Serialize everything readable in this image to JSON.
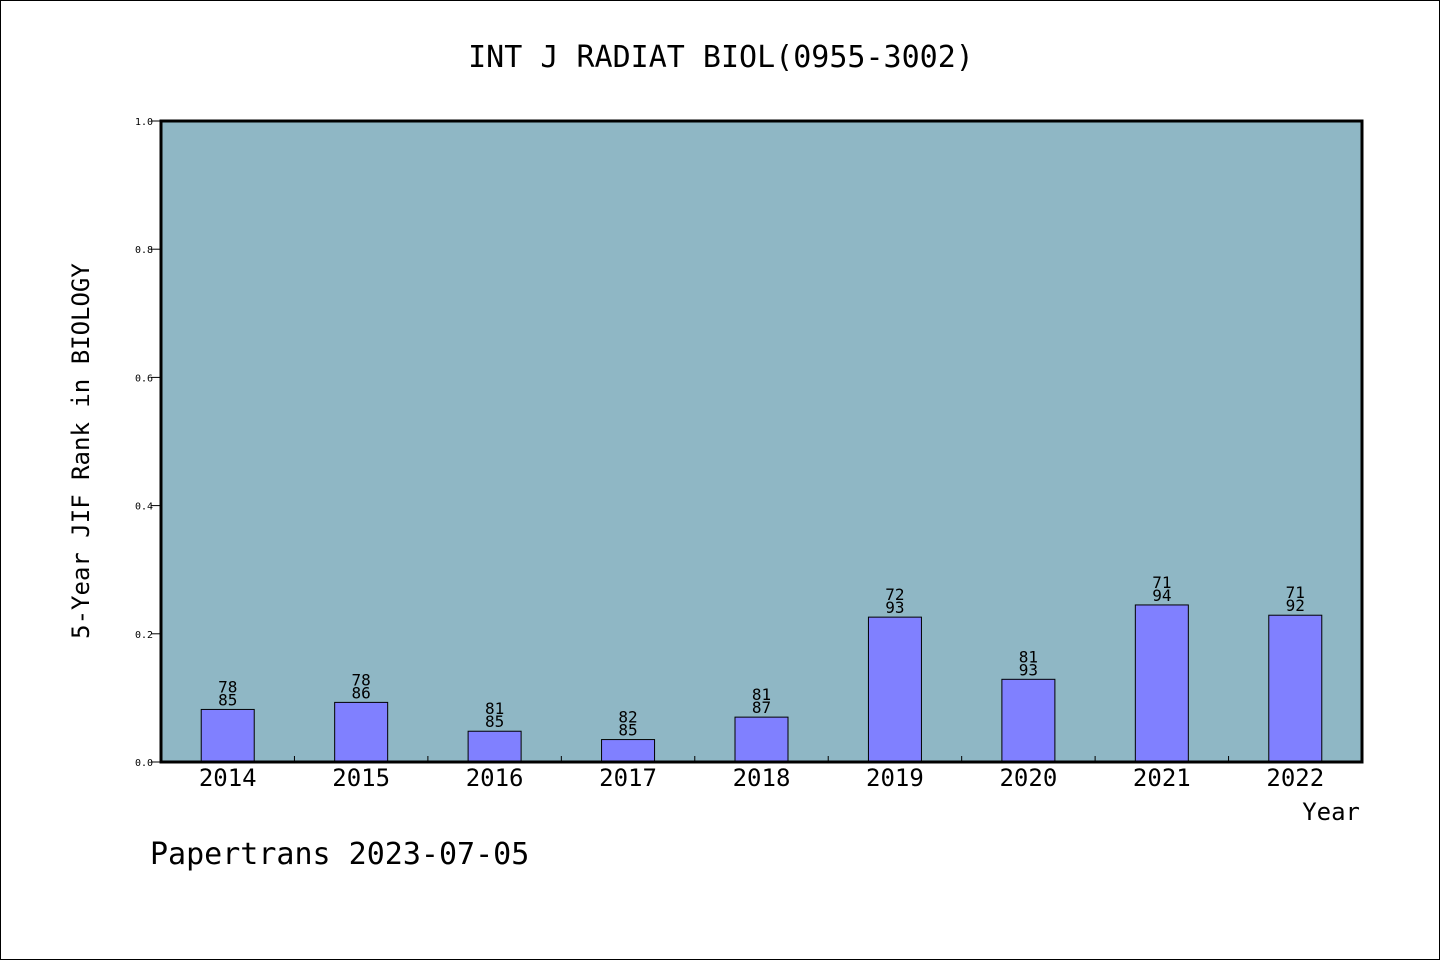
{
  "chart_data": {
    "type": "bar",
    "title": "INT J RADIAT BIOL(0955-3002)",
    "xlabel": "Year",
    "ylabel": "5-Year JIF Rank in BIOLOGY",
    "ylim": [
      0,
      1.0
    ],
    "yticks": [
      "0.0",
      "0.2",
      "0.4",
      "0.6",
      "0.8",
      "1.0"
    ],
    "categories": [
      "2014",
      "2015",
      "2016",
      "2017",
      "2018",
      "2019",
      "2020",
      "2021",
      "2022"
    ],
    "values": [
      0.082,
      0.093,
      0.048,
      0.035,
      0.07,
      0.226,
      0.129,
      0.245,
      0.229
    ],
    "rank_labels": [
      {
        "rank": "78",
        "total": "85"
      },
      {
        "rank": "78",
        "total": "86"
      },
      {
        "rank": "81",
        "total": "85"
      },
      {
        "rank": "82",
        "total": "85"
      },
      {
        "rank": "81",
        "total": "87"
      },
      {
        "rank": "72",
        "total": "93"
      },
      {
        "rank": "81",
        "total": "93"
      },
      {
        "rank": "71",
        "total": "94"
      },
      {
        "rank": "71",
        "total": "92"
      }
    ],
    "grid": false,
    "plot_background": "#8fb7c5",
    "bar_color": "#8080ff"
  },
  "footer": {
    "text": "Papertrans 2023-07-05"
  }
}
